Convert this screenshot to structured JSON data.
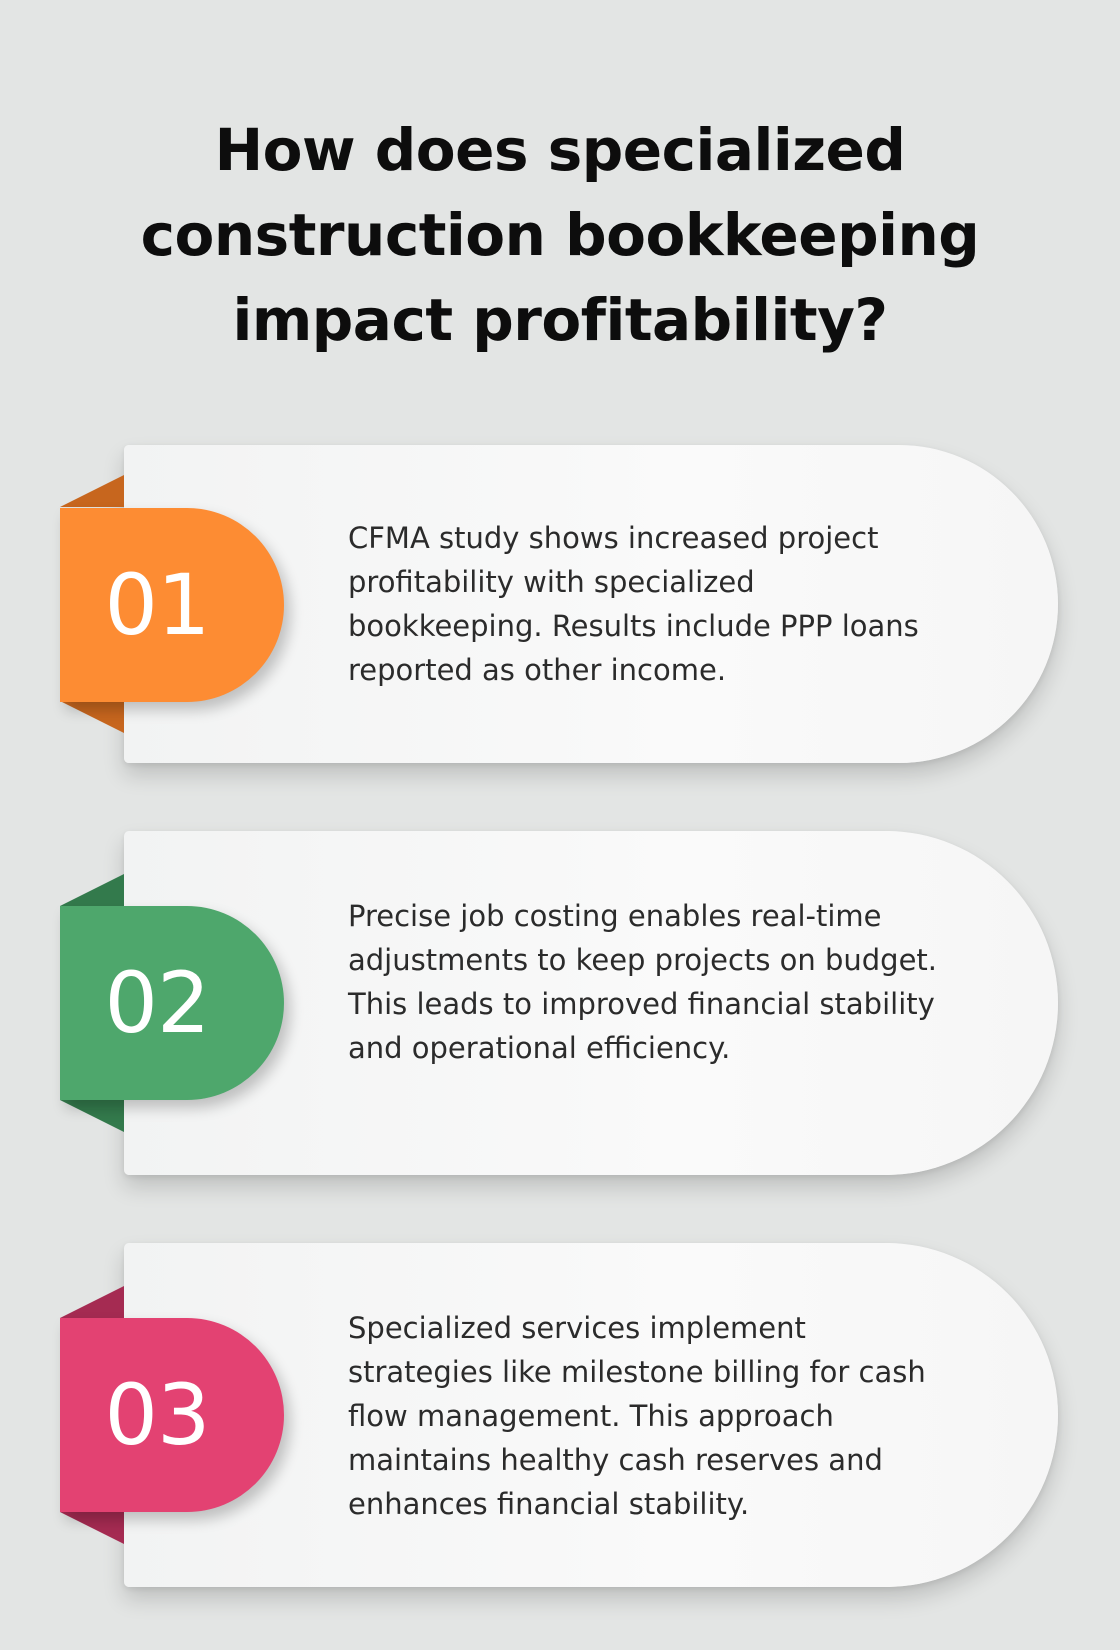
{
  "title": "How does specialized construction bookkeeping impact profitability?",
  "steps": [
    {
      "number": "01",
      "color": "#fd8c33",
      "fold_color": "#c7661e",
      "text": "CFMA study shows increased project profitability with specialized bookkeeping. Results include PPP loans reported as other income."
    },
    {
      "number": "02",
      "color": "#4ea76c",
      "fold_color": "#337a4c",
      "text": "Precise job costing enables real-time adjustments to keep projects on budget. This leads to improved financial stability and operational efficiency."
    },
    {
      "number": "03",
      "color": "#e34272",
      "fold_color": "#a52b52",
      "text": "Specialized services implement strategies like milestone billing for cash flow management. This approach maintains healthy cash reserves and enhances financial stability."
    }
  ]
}
